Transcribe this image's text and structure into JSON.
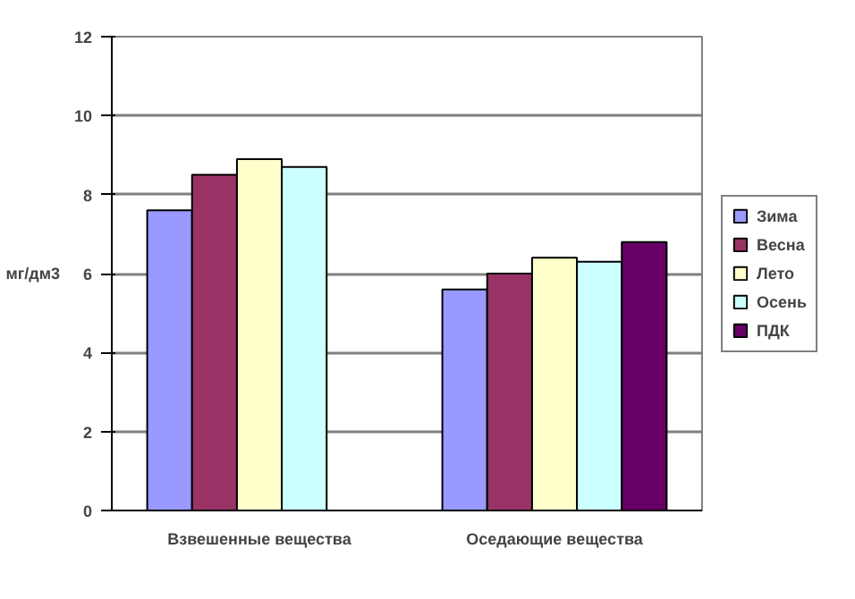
{
  "chart_data": {
    "type": "bar",
    "ylabel": "мг/дм3",
    "categories": [
      "Взвешенные вещества",
      "Оседающие вещества"
    ],
    "series": [
      {
        "name": "Зима",
        "color": "#9999ff",
        "values": [
          7.6,
          5.6
        ]
      },
      {
        "name": "Весна",
        "color": "#993366",
        "values": [
          8.5,
          6.0
        ]
      },
      {
        "name": "Лето",
        "color": "#ffffcc",
        "values": [
          8.9,
          6.4
        ]
      },
      {
        "name": "Осень",
        "color": "#ccffff",
        "values": [
          8.7,
          6.3
        ]
      },
      {
        "name": "ПДК",
        "color": "#660066",
        "values": [
          null,
          6.8
        ]
      }
    ],
    "ylim": [
      0,
      12
    ],
    "yticks": [
      0,
      2,
      4,
      6,
      8,
      10,
      12
    ],
    "grid": "y",
    "legend": "right"
  }
}
